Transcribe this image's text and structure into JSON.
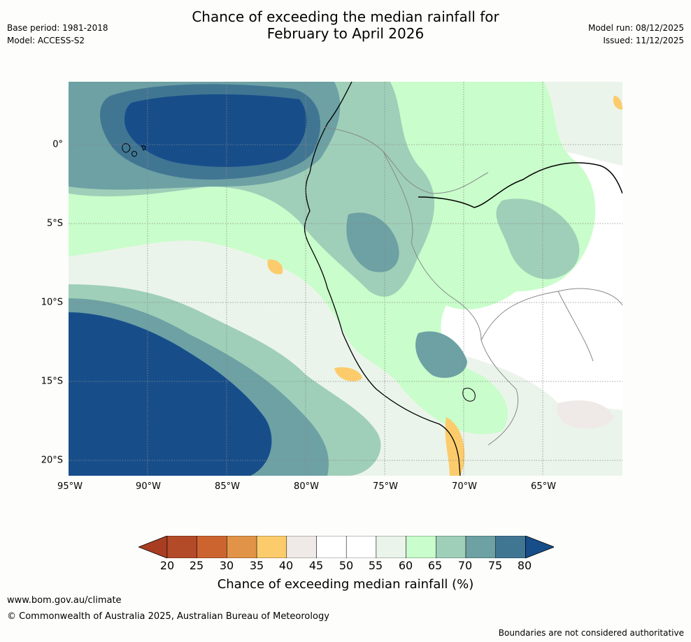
{
  "header": {
    "title_line1": "Chance of exceeding the median rainfall for",
    "title_line2": "February to April 2026",
    "base_period": "Base period: 1981-2018",
    "model": "Model: ACCESS-S2",
    "model_run": "Model run: 08/12/2025",
    "issued": "Issued: 11/12/2025"
  },
  "map": {
    "lat_labels": [
      "0°",
      "5°S",
      "10°S",
      "15°S",
      "20°S"
    ],
    "lon_labels": [
      "95°W",
      "90°W",
      "85°W",
      "80°W",
      "75°W",
      "70°W",
      "65°W"
    ]
  },
  "colorbar": {
    "ticks": [
      "20",
      "25",
      "30",
      "35",
      "40",
      "45",
      "50",
      "55",
      "60",
      "65",
      "70",
      "75",
      "80"
    ],
    "colors": [
      "#a93d22",
      "#b34a28",
      "#cc6430",
      "#e19447",
      "#fccc6c",
      "#efeae7",
      "#ffffff",
      "#ffffff",
      "#ebf4ea",
      "#c9fdcb",
      "#9fcfb8",
      "#6da1a4",
      "#417693",
      "#174e8a"
    ],
    "label": "Chance of exceeding median rainfall (%)"
  },
  "footer": {
    "url": "www.bom.gov.au/climate",
    "copyright": "© Commonwealth of Australia 2025, Australian Bureau of Meteorology",
    "note": "Boundaries are not considered authoritative"
  }
}
